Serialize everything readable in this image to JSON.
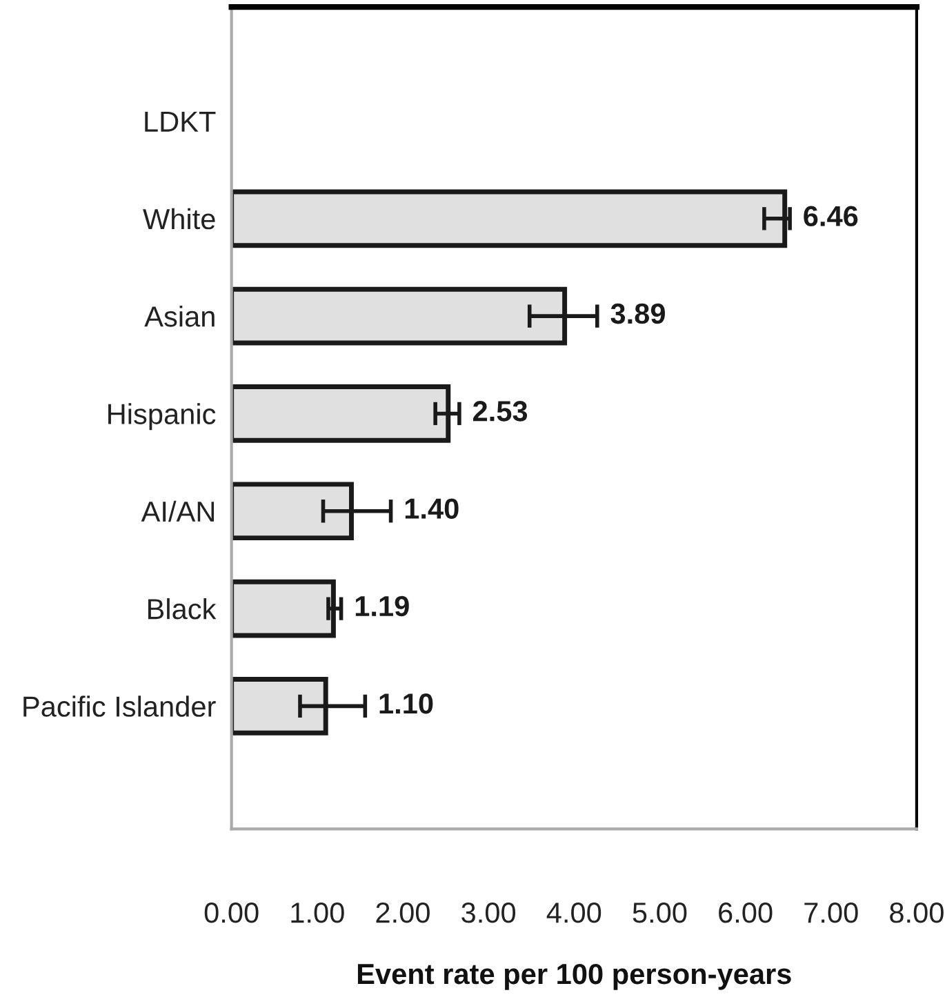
{
  "chart_data": {
    "type": "bar",
    "orientation": "horizontal",
    "xlabel": "Event rate per 100 person-years",
    "categories": [
      "LDKT",
      "White",
      "Asian",
      "Hispanic",
      "AI/AN",
      "Black",
      "Pacific Islander"
    ],
    "values": [
      null,
      6.46,
      3.89,
      2.53,
      1.4,
      1.19,
      1.1
    ],
    "errors": [
      null,
      [
        6.22,
        6.52
      ],
      [
        3.48,
        4.27
      ],
      [
        2.38,
        2.66
      ],
      [
        1.07,
        1.86
      ],
      [
        1.13,
        1.28
      ],
      [
        0.8,
        1.56
      ]
    ],
    "value_labels": [
      null,
      "6.46",
      "3.89",
      "2.53",
      "1.40",
      "1.19",
      "1.10"
    ],
    "color": "#e0e0e0",
    "xlim": [
      0,
      8
    ],
    "xticks": [
      {
        "value": 0,
        "label": "0.00"
      },
      {
        "value": 1,
        "label": "1.00"
      },
      {
        "value": 2,
        "label": "2.00"
      },
      {
        "value": 3,
        "label": "3.00"
      },
      {
        "value": 4,
        "label": "4.00"
      },
      {
        "value": 5,
        "label": "5.00"
      },
      {
        "value": 6,
        "label": "6.00"
      },
      {
        "value": 7,
        "label": "7.00"
      },
      {
        "value": 8,
        "label": "8.00"
      }
    ],
    "grid": false,
    "legend": false
  }
}
